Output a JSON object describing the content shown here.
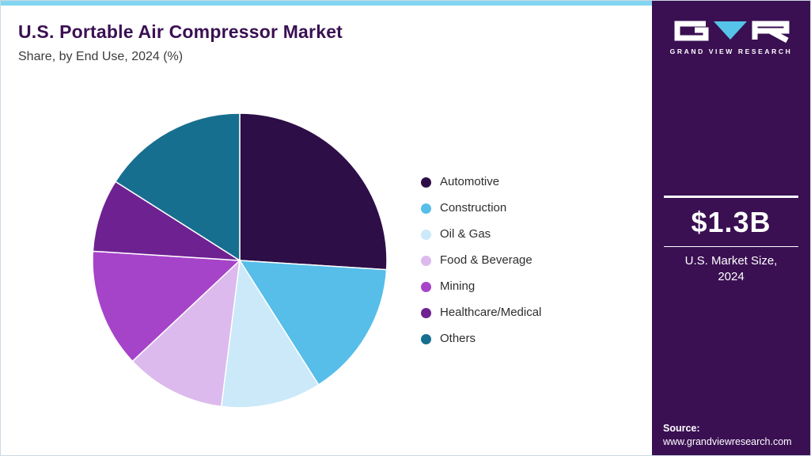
{
  "header": {
    "title": "U.S. Portable Air Compressor Market",
    "subtitle": "Share, by End Use, 2024 (%)"
  },
  "chart_data": {
    "type": "pie",
    "title": "U.S. Portable Air Compressor Market Share, by End Use, 2024 (%)",
    "unit": "%",
    "direction": "clockwise",
    "start_angle_deg": 0,
    "legend_position": "right",
    "slices": [
      {
        "label": "Automotive",
        "value": 26,
        "color": "#2d0e47"
      },
      {
        "label": "Construction",
        "value": 15,
        "color": "#57bde9"
      },
      {
        "label": "Oil & Gas",
        "value": 11,
        "color": "#cbe9f8"
      },
      {
        "label": "Food & Beverage",
        "value": 11,
        "color": "#dcbaed"
      },
      {
        "label": "Mining",
        "value": 13,
        "color": "#a644c9"
      },
      {
        "label": "Healthcare/Medical",
        "value": 8,
        "color": "#6e2191"
      },
      {
        "label": "Others",
        "value": 16,
        "color": "#176f90"
      }
    ]
  },
  "sidebar": {
    "logo_text": "GRAND VIEW RESEARCH",
    "market_size_value": "$1.3B",
    "market_size_label_line1": "U.S. Market Size,",
    "market_size_label_line2": "2024",
    "source_label": "Source:",
    "source_url": "www.grandviewresearch.com",
    "background_color": "#3a1053",
    "accent_color": "#82d5f0",
    "logo_triangle_color": "#56c3e8"
  }
}
